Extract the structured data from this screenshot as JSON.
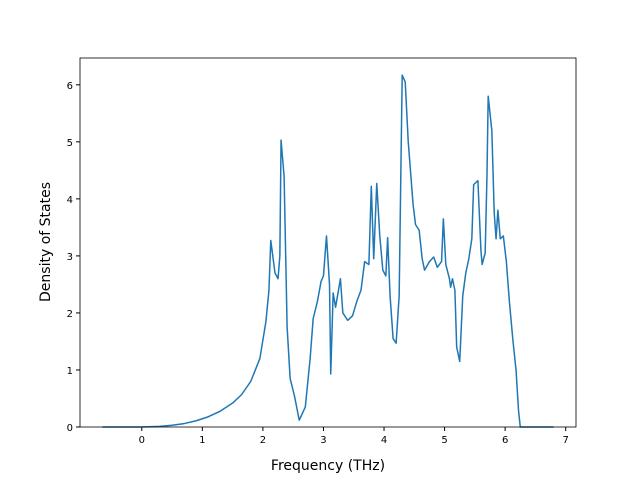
{
  "chart_data": {
    "type": "line",
    "x_label": "Frequency (THz)",
    "y_label": "Density of States",
    "series": [
      {
        "color": "#1f77b4",
        "x": [
          -0.65,
          -0.3,
          0,
          0.3,
          0.5,
          0.7,
          0.9,
          1.1,
          1.3,
          1.5,
          1.65,
          1.8,
          1.95,
          2.05,
          2.1,
          2.13,
          2.2,
          2.25,
          2.28,
          2.3,
          2.35,
          2.4,
          2.45,
          2.52,
          2.6,
          2.7,
          2.78,
          2.83,
          2.9,
          2.96,
          3.0,
          3.05,
          3.1,
          3.12,
          3.16,
          3.2,
          3.28,
          3.32,
          3.4,
          3.48,
          3.55,
          3.62,
          3.68,
          3.75,
          3.79,
          3.83,
          3.88,
          3.93,
          3.98,
          4.03,
          4.06,
          4.1,
          4.15,
          4.2,
          4.25,
          4.3,
          4.35,
          4.4,
          4.48,
          4.52,
          4.58,
          4.63,
          4.67,
          4.75,
          4.82,
          4.88,
          4.95,
          4.98,
          5.02,
          5.08,
          5.1,
          5.13,
          5.17,
          5.2,
          5.25,
          5.3,
          5.35,
          5.4,
          5.45,
          5.48,
          5.55,
          5.6,
          5.62,
          5.67,
          5.7,
          5.72,
          5.78,
          5.82,
          5.85,
          5.88,
          5.92,
          5.97,
          6.02,
          6.07,
          6.13,
          6.18,
          6.22,
          6.25,
          6.5,
          6.8
        ],
        "values": [
          0,
          0,
          0,
          0.01,
          0.03,
          0.06,
          0.11,
          0.18,
          0.28,
          0.42,
          0.57,
          0.8,
          1.2,
          1.85,
          2.4,
          3.27,
          2.7,
          2.6,
          3.0,
          5.03,
          4.4,
          1.75,
          0.85,
          0.55,
          0.12,
          0.35,
          1.2,
          1.9,
          2.2,
          2.55,
          2.65,
          3.35,
          2.5,
          0.93,
          2.35,
          2.1,
          2.6,
          2.0,
          1.87,
          1.95,
          2.2,
          2.4,
          2.9,
          2.85,
          4.22,
          2.95,
          4.27,
          3.35,
          2.75,
          2.65,
          3.32,
          2.3,
          1.55,
          1.47,
          2.3,
          6.17,
          6.05,
          5.0,
          3.9,
          3.55,
          3.45,
          2.95,
          2.75,
          2.9,
          2.98,
          2.8,
          2.9,
          3.65,
          2.85,
          2.6,
          2.45,
          2.6,
          2.4,
          1.4,
          1.15,
          2.3,
          2.7,
          2.95,
          3.3,
          4.25,
          4.32,
          3.1,
          2.85,
          3.05,
          4.4,
          5.8,
          5.2,
          3.75,
          3.3,
          3.8,
          3.3,
          3.35,
          2.9,
          2.2,
          1.5,
          1.0,
          0.3,
          0,
          0,
          0
        ]
      }
    ],
    "xlim": [
      -1.02,
      7.17
    ],
    "ylim": [
      0,
      6.47
    ],
    "xticks": [
      0,
      1,
      2,
      3,
      4,
      5,
      6,
      7
    ],
    "yticks": [
      0,
      1,
      2,
      3,
      4,
      5,
      6
    ]
  }
}
